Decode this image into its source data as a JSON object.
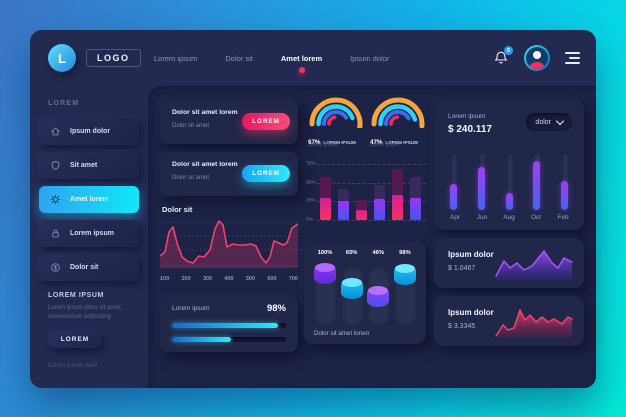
{
  "header": {
    "logo_letter": "L",
    "logo_text": "LOGO",
    "nav_items": [
      {
        "label": "Lorem ipsum",
        "active": false
      },
      {
        "label": "Dolor sit",
        "active": false
      },
      {
        "label": "Amet lorem",
        "active": true
      },
      {
        "label": "Ipsum dolor",
        "active": false
      }
    ],
    "notification_count": "5"
  },
  "sidebar": {
    "section_label": "LOREM",
    "items": [
      {
        "icon": "home-icon",
        "label": "Ipsum dolor",
        "active": false
      },
      {
        "icon": "shield-icon",
        "label": "Sit amet",
        "active": false
      },
      {
        "icon": "gear-icon",
        "label": "Amet lorem",
        "active": true
      },
      {
        "icon": "lock-icon",
        "label": "Lorem ipsum",
        "active": false
      },
      {
        "icon": "dollar-icon",
        "label": "Dolor sit",
        "active": false
      }
    ],
    "promo": {
      "title": "LOREM IPSUM",
      "text": "Lorem ipsum dolor sit amet, consectetuer adipiscing",
      "button_label": "LOREM",
      "footer_link": "Lorem ipsum dolor"
    }
  },
  "main": {
    "action_cards": [
      {
        "title": "Dolor sit amet lorem",
        "subtitle": "Dolor sit amet",
        "button_label": "LOREM",
        "accent": "#f5315f"
      },
      {
        "title": "Dolor sit amet lorem",
        "subtitle": "Dolor sit amet",
        "button_label": "LOREM",
        "accent": "#22c9f6"
      }
    ],
    "line_card_title": "Dolor sit",
    "progress_card": {
      "label": "Lorem ipsum",
      "value": "98%"
    },
    "cylinder_caption": "Dolor sit amet lorem",
    "stats_card": {
      "label": "Lorem ipsum",
      "value": "$ 240.117",
      "dropdown_value": "dolor"
    },
    "spark_cards": [
      {
        "label": "Ipsum dolor",
        "value": "$ 1.0467",
        "accent": "#8a3df2"
      },
      {
        "label": "Ipsum dolor",
        "value": "$ 3.3345",
        "accent": "#f0295f"
      }
    ]
  },
  "colors": {
    "accent_pink": "#f5315f",
    "accent_cyan": "#22c9f6",
    "accent_purple": "#8a3df2",
    "accent_orange": "#f6a43b",
    "accent_blue": "#3a6df0",
    "sidebar_active_gradient": [
      "#2fa4ef",
      "#12e7fb"
    ]
  },
  "chart_data": {
    "gauges": [
      {
        "type": "gauge",
        "percent": "67%",
        "title": "LOREM IPSUM",
        "subtitle": "Lorem ipsum",
        "arcs": [
          {
            "r": 24,
            "w": 5,
            "color": "#f6a43b",
            "start": 180,
            "end": -15
          },
          {
            "r": 17.5,
            "w": 4.5,
            "color": "#2bd2f7",
            "start": 180,
            "end": 20
          },
          {
            "r": 12,
            "w": 4,
            "color": "#3a6df0",
            "start": 180,
            "end": 32
          },
          {
            "r": 7,
            "w": 3.5,
            "color": "#f0295f",
            "start": 180,
            "end": 100
          }
        ]
      },
      {
        "type": "gauge",
        "percent": "47%",
        "title": "LOREM IPSUM",
        "subtitle": "Lorem ipsum",
        "arcs": [
          {
            "r": 24,
            "w": 5,
            "color": "#f6a43b",
            "start": 180,
            "end": -5
          },
          {
            "r": 17.5,
            "w": 4.5,
            "color": "#2bd2f7",
            "start": 180,
            "end": 15
          },
          {
            "r": 12,
            "w": 4,
            "color": "#3a6df0",
            "start": 180,
            "end": 28
          },
          {
            "r": 7,
            "w": 3.5,
            "color": "#f0295f",
            "start": 180,
            "end": 95
          }
        ]
      }
    ],
    "line_chart": {
      "type": "area",
      "title": "Dolor sit",
      "color": "#f5406e",
      "x_ticks": [
        "100",
        "200",
        "300",
        "400",
        "500",
        "600",
        "700"
      ],
      "grid_ys": [
        6,
        20,
        34,
        50
      ],
      "baseline": 52,
      "points": [
        [
          0,
          40
        ],
        [
          5,
          36
        ],
        [
          9,
          16
        ],
        [
          13,
          11
        ],
        [
          17,
          27
        ],
        [
          22,
          41
        ],
        [
          27,
          45
        ],
        [
          33,
          47
        ],
        [
          39,
          40
        ],
        [
          44,
          41
        ],
        [
          50,
          34
        ],
        [
          55,
          13
        ],
        [
          59,
          5
        ],
        [
          63,
          9
        ],
        [
          67,
          31
        ],
        [
          73,
          28
        ],
        [
          79,
          29
        ],
        [
          85,
          29
        ],
        [
          91,
          28
        ],
        [
          96,
          30
        ],
        [
          101,
          41
        ],
        [
          106,
          47
        ],
        [
          110,
          41
        ],
        [
          114,
          25
        ],
        [
          119,
          27
        ],
        [
          123,
          29
        ],
        [
          127,
          27
        ],
        [
          132,
          12
        ],
        [
          138,
          8
        ]
      ]
    },
    "stacked_bar": {
      "type": "bar",
      "y_max": 80,
      "y_ticks": [
        {
          "label": "75%",
          "value": 75
        },
        {
          "label": "50%",
          "value": 50
        },
        {
          "label": "25%",
          "value": 25
        },
        {
          "label": "0%",
          "value": 0
        }
      ],
      "bars": [
        {
          "total": 58,
          "bottom": 30,
          "style": "pink"
        },
        {
          "total": 42,
          "bottom": 25,
          "style": "purple"
        },
        {
          "total": 27,
          "bottom": 14,
          "style": "pink"
        },
        {
          "total": 47,
          "bottom": 28,
          "style": "purple"
        },
        {
          "total": 68,
          "bottom": 33,
          "style": "pink"
        },
        {
          "total": 57,
          "bottom": 30,
          "style": "purple"
        }
      ]
    },
    "progress": {
      "type": "bar",
      "values": [
        93,
        52
      ]
    },
    "cylinders": {
      "type": "bar",
      "items": [
        {
          "label": "100%",
          "value": 100,
          "color": "purple"
        },
        {
          "label": "65%",
          "value": 65,
          "color": "cyan"
        },
        {
          "label": "46%",
          "value": 46,
          "color": "violet"
        },
        {
          "label": "98%",
          "value": 98,
          "color": "cyan"
        }
      ]
    },
    "month_sliders": {
      "type": "bar",
      "categories": [
        "Apr",
        "Jun",
        "Aug",
        "Oct",
        "Feb"
      ],
      "values": [
        45,
        75,
        30,
        85,
        50
      ]
    },
    "sparklines": [
      {
        "type": "area",
        "color": "purple",
        "stroke": "#a855f7",
        "points": [
          [
            2,
            30
          ],
          [
            10,
            15
          ],
          [
            16,
            22
          ],
          [
            23,
            17
          ],
          [
            30,
            24
          ],
          [
            38,
            20
          ],
          [
            50,
            5
          ],
          [
            58,
            17
          ],
          [
            64,
            22
          ],
          [
            70,
            12
          ],
          [
            78,
            16
          ]
        ]
      },
      {
        "type": "area",
        "color": "pink",
        "stroke": "#f5406e",
        "points": [
          [
            2,
            32
          ],
          [
            9,
            21
          ],
          [
            14,
            26
          ],
          [
            20,
            24
          ],
          [
            26,
            6
          ],
          [
            31,
            16
          ],
          [
            36,
            11
          ],
          [
            42,
            18
          ],
          [
            48,
            13
          ],
          [
            54,
            18
          ],
          [
            60,
            15
          ],
          [
            68,
            20
          ],
          [
            74,
            13
          ],
          [
            78,
            15
          ]
        ]
      }
    ]
  }
}
